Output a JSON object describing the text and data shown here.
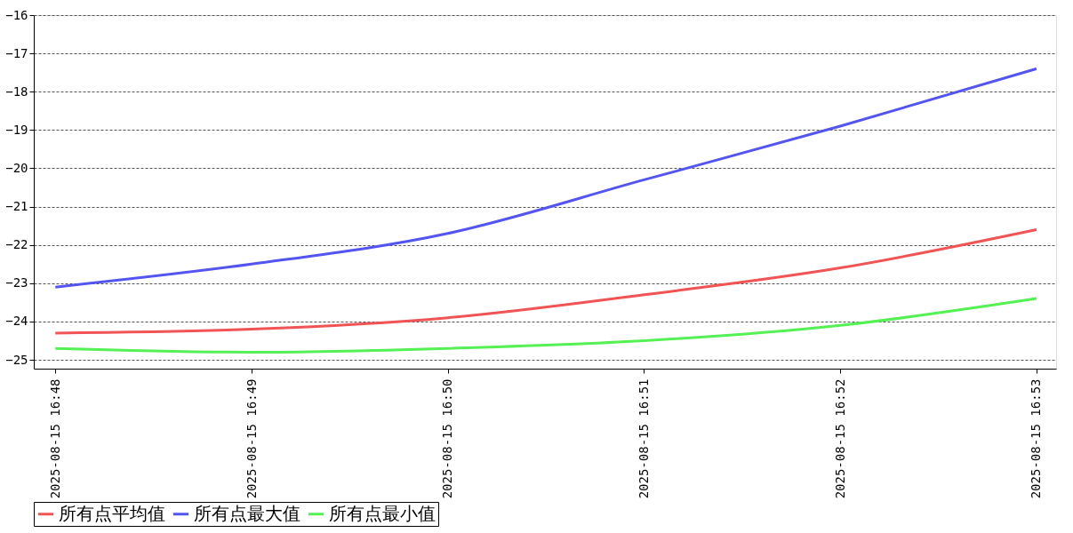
{
  "chart_data": {
    "type": "line",
    "categories": [
      "2025-08-15 16:48",
      "2025-08-15 16:49",
      "2025-08-15 16:50",
      "2025-08-15 16:51",
      "2025-08-15 16:52",
      "2025-08-15 16:53"
    ],
    "series": [
      {
        "name": "所有点平均值",
        "color": "#f05454",
        "values": [
          -24.3,
          -24.2,
          -23.9,
          -23.3,
          -22.6,
          -21.6
        ]
      },
      {
        "name": "所有点最大值",
        "color": "#5454f0",
        "values": [
          -23.1,
          -22.5,
          -21.7,
          -20.3,
          -18.9,
          -17.4
        ]
      },
      {
        "name": "所有点最小值",
        "color": "#54f054",
        "values": [
          -24.7,
          -24.8,
          -24.7,
          -24.5,
          -24.1,
          -23.4
        ]
      }
    ],
    "ylim": [
      -25.23,
      -16
    ],
    "yticks": [
      -25,
      -24,
      -23,
      -22,
      -21,
      -20,
      -19,
      -18,
      -17,
      -16
    ],
    "grid": "y",
    "legend": "bottom",
    "marker": "none",
    "line_style": "solid"
  }
}
